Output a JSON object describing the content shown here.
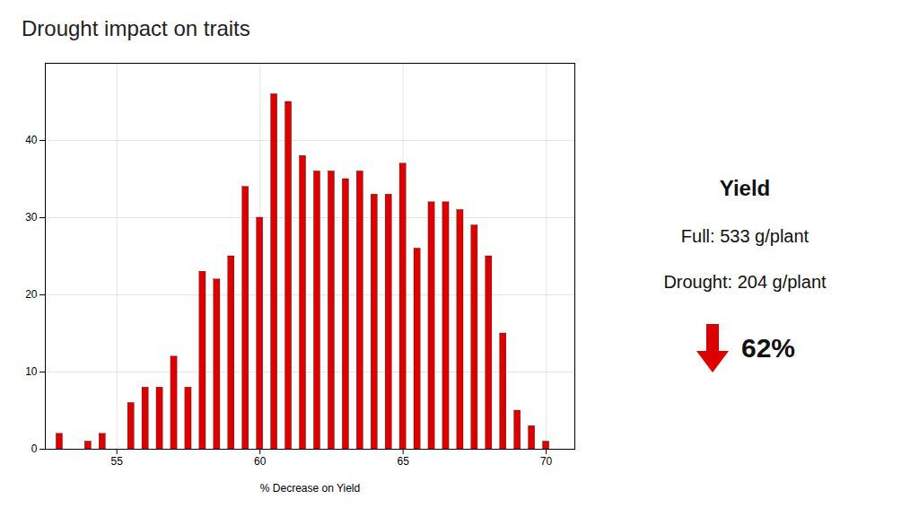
{
  "chart_data": {
    "type": "bar",
    "title": "Drought impact on traits",
    "x": [
      53.0,
      53.5,
      54.0,
      54.5,
      55.0,
      55.5,
      56.0,
      56.5,
      57.0,
      57.5,
      58.0,
      58.5,
      59.0,
      59.5,
      60.0,
      60.5,
      61.0,
      61.5,
      62.0,
      62.5,
      63.0,
      63.5,
      64.0,
      64.5,
      65.0,
      65.5,
      66.0,
      66.5,
      67.0,
      67.5,
      68.0,
      68.5,
      69.0,
      69.5,
      70.0
    ],
    "values": [
      2,
      0,
      1,
      2,
      0,
      6,
      8,
      8,
      12,
      8,
      23,
      22,
      25,
      34,
      30,
      46,
      45,
      38,
      36,
      36,
      35,
      36,
      33,
      33,
      37,
      26,
      32,
      32,
      31,
      29,
      25,
      15,
      5,
      3,
      1
    ],
    "color": "#dd0000",
    "xlabel": "% Decrease on Yield",
    "xlim": [
      52.5,
      71.0
    ],
    "xticks": [
      55,
      60,
      65,
      70
    ],
    "ylim": [
      0,
      50
    ],
    "yticks": [
      0,
      10,
      20,
      30,
      40
    ],
    "grid": true,
    "annotations": [
      {
        "text": "Yield"
      },
      {
        "text": "Full: 533 g/plant"
      },
      {
        "text": "Drought: 204 g/plant"
      },
      {
        "text": "62%",
        "marker": "arrow",
        "color": "#dd0000"
      }
    ]
  }
}
